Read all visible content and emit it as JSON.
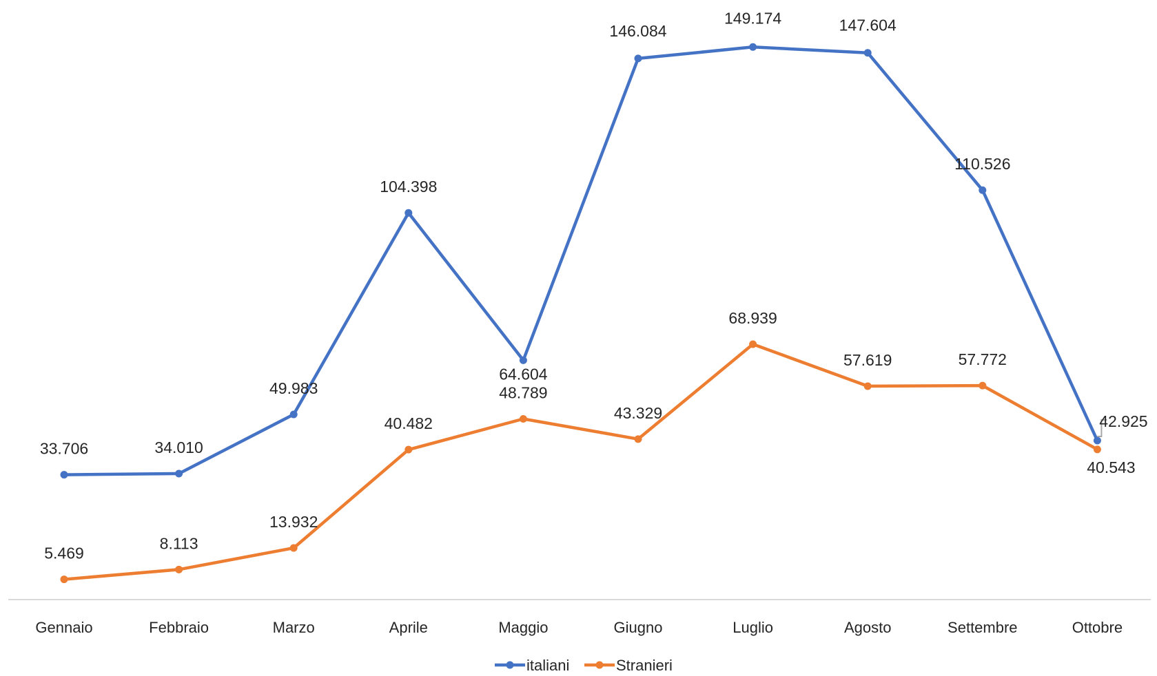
{
  "chart_data": {
    "type": "line",
    "title": "",
    "xlabel": "",
    "ylabel": "",
    "categories": [
      "Gennaio",
      "Febbraio",
      "Marzo",
      "Aprile",
      "Maggio",
      "Giugno",
      "Luglio",
      "Agosto",
      "Settembre",
      "Ottobre"
    ],
    "ylim": [
      0,
      160000
    ],
    "grid": false,
    "legend_position": "bottom",
    "series": [
      {
        "name": "italiani",
        "color": "#4472C4",
        "values": [
          33706,
          34010,
          49983,
          104398,
          64604,
          146084,
          149174,
          147604,
          110526,
          42925
        ],
        "labels": [
          "33.706",
          "34.010",
          "49.983",
          "104.398",
          "64.604",
          "146.084",
          "149.174",
          "147.604",
          "110.526",
          "42.925"
        ]
      },
      {
        "name": "Stranieri",
        "color": "#ED7D31",
        "values": [
          5469,
          8113,
          13932,
          40482,
          48789,
          43329,
          68939,
          57619,
          57772,
          40543
        ],
        "labels": [
          "5.469",
          "8.113",
          "13.932",
          "40.482",
          "48.789",
          "43.329",
          "68.939",
          "57.619",
          "57.772",
          "40.543"
        ]
      }
    ]
  }
}
